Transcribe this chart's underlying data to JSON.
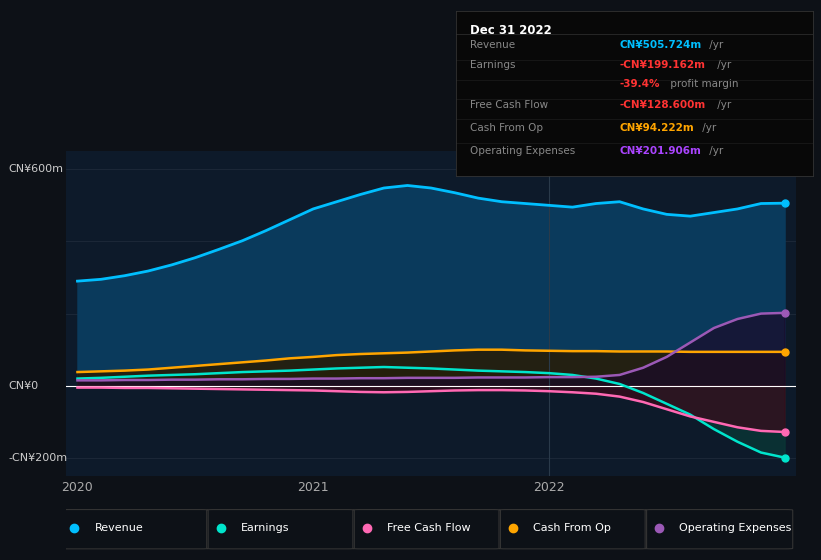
{
  "bg_color": "#0d1117",
  "chart_bg": "#0d1a2a",
  "ylabel_top": "CN¥600m",
  "ylabel_zero": "CN¥0",
  "ylabel_bot": "-CN¥200m",
  "x_labels": [
    "2020",
    "2021",
    "2022"
  ],
  "info_box": {
    "title": "Dec 31 2022",
    "rows": [
      {
        "label": "Revenue",
        "value": "CN¥505.724m",
        "suffix": " /yr",
        "color": "#00bfff"
      },
      {
        "label": "Earnings",
        "value": "-CN¥199.162m",
        "suffix": " /yr",
        "color": "#ff3333"
      },
      {
        "label": "",
        "value": "-39.4%",
        "suffix": " profit margin",
        "color": "#ff3333"
      },
      {
        "label": "Free Cash Flow",
        "value": "-CN¥128.600m",
        "suffix": " /yr",
        "color": "#ff3333"
      },
      {
        "label": "Cash From Op",
        "value": "CN¥94.222m",
        "suffix": " /yr",
        "color": "#ffa500"
      },
      {
        "label": "Operating Expenses",
        "value": "CN¥201.906m",
        "suffix": " /yr",
        "color": "#aa44ff"
      }
    ]
  },
  "series": {
    "Revenue": {
      "color": "#00bfff",
      "fill_color": "#0a3a5c",
      "x": [
        0,
        0.1,
        0.2,
        0.3,
        0.4,
        0.5,
        0.6,
        0.7,
        0.8,
        0.9,
        1.0,
        1.1,
        1.2,
        1.3,
        1.4,
        1.5,
        1.6,
        1.7,
        1.8,
        1.9,
        2.0,
        2.1,
        2.2,
        2.3,
        2.4,
        2.5,
        2.6,
        2.7,
        2.8,
        2.9,
        3.0
      ],
      "y": [
        290,
        295,
        305,
        318,
        335,
        355,
        378,
        402,
        430,
        460,
        490,
        510,
        530,
        548,
        555,
        548,
        535,
        520,
        510,
        505,
        500,
        495,
        505,
        510,
        490,
        475,
        470,
        480,
        490,
        505,
        506
      ]
    },
    "Earnings": {
      "color": "#00e5cc",
      "fill_color": "#0a3535",
      "x": [
        0,
        0.1,
        0.2,
        0.3,
        0.4,
        0.5,
        0.6,
        0.7,
        0.8,
        0.9,
        1.0,
        1.1,
        1.2,
        1.3,
        1.4,
        1.5,
        1.6,
        1.7,
        1.8,
        1.9,
        2.0,
        2.1,
        2.2,
        2.3,
        2.4,
        2.5,
        2.6,
        2.7,
        2.8,
        2.9,
        3.0
      ],
      "y": [
        20,
        22,
        25,
        28,
        30,
        32,
        35,
        38,
        40,
        42,
        45,
        48,
        50,
        52,
        50,
        48,
        45,
        42,
        40,
        38,
        35,
        30,
        20,
        5,
        -20,
        -50,
        -80,
        -120,
        -155,
        -185,
        -199
      ]
    },
    "FreeCashFlow": {
      "color": "#ff69b4",
      "fill_color": "#3a0a1a",
      "x": [
        0,
        0.1,
        0.2,
        0.3,
        0.4,
        0.5,
        0.6,
        0.7,
        0.8,
        0.9,
        1.0,
        1.1,
        1.2,
        1.3,
        1.4,
        1.5,
        1.6,
        1.7,
        1.8,
        1.9,
        2.0,
        2.1,
        2.2,
        2.3,
        2.4,
        2.5,
        2.6,
        2.7,
        2.8,
        2.9,
        3.0
      ],
      "y": [
        -5,
        -5,
        -6,
        -6,
        -7,
        -8,
        -9,
        -10,
        -11,
        -12,
        -13,
        -15,
        -17,
        -18,
        -17,
        -15,
        -13,
        -12,
        -12,
        -13,
        -15,
        -18,
        -22,
        -30,
        -45,
        -65,
        -85,
        -100,
        -115,
        -125,
        -128
      ]
    },
    "CashFromOp": {
      "color": "#ffa500",
      "fill_color": "#2a1a00",
      "x": [
        0,
        0.1,
        0.2,
        0.3,
        0.4,
        0.5,
        0.6,
        0.7,
        0.8,
        0.9,
        1.0,
        1.1,
        1.2,
        1.3,
        1.4,
        1.5,
        1.6,
        1.7,
        1.8,
        1.9,
        2.0,
        2.1,
        2.2,
        2.3,
        2.4,
        2.5,
        2.6,
        2.7,
        2.8,
        2.9,
        3.0
      ],
      "y": [
        38,
        40,
        42,
        45,
        50,
        55,
        60,
        65,
        70,
        76,
        80,
        85,
        88,
        90,
        92,
        95,
        98,
        100,
        100,
        98,
        97,
        96,
        96,
        95,
        95,
        95,
        94,
        94,
        94,
        94,
        94
      ]
    },
    "OperatingExpenses": {
      "color": "#9b59b6",
      "fill_color": "#1a0a2a",
      "x": [
        0,
        0.1,
        0.2,
        0.3,
        0.4,
        0.5,
        0.6,
        0.7,
        0.8,
        0.9,
        1.0,
        1.1,
        1.2,
        1.3,
        1.4,
        1.5,
        1.6,
        1.7,
        1.8,
        1.9,
        2.0,
        2.1,
        2.2,
        2.3,
        2.4,
        2.5,
        2.6,
        2.7,
        2.8,
        2.9,
        3.0
      ],
      "y": [
        15,
        15,
        16,
        16,
        17,
        17,
        18,
        18,
        19,
        19,
        20,
        20,
        21,
        21,
        22,
        22,
        22,
        23,
        23,
        23,
        24,
        24,
        25,
        30,
        50,
        80,
        120,
        160,
        185,
        200,
        202
      ]
    }
  },
  "ylim": [
    -250,
    650
  ],
  "xlim": [
    -0.05,
    3.05
  ],
  "gridline_color": "#1e2a3a",
  "zero_line_color": "#ffffff",
  "tick_color": "#aaaaaa",
  "label_color": "#cccccc",
  "legend": [
    {
      "label": "Revenue",
      "color": "#00bfff"
    },
    {
      "label": "Earnings",
      "color": "#00e5cc"
    },
    {
      "label": "Free Cash Flow",
      "color": "#ff69b4"
    },
    {
      "label": "Cash From Op",
      "color": "#ffa500"
    },
    {
      "label": "Operating Expenses",
      "color": "#9b59b6"
    }
  ],
  "vline_x": 2.0,
  "vline_color": "#2a3a4a"
}
